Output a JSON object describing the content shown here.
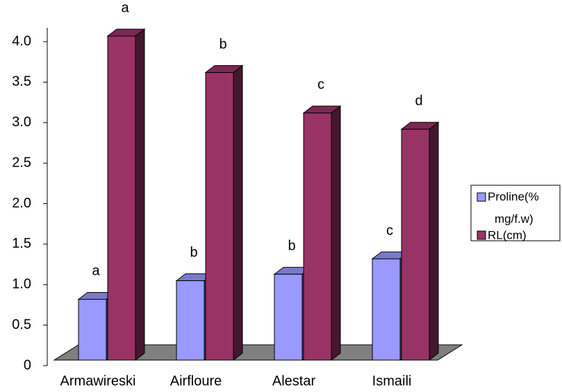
{
  "chart_data": {
    "type": "bar3d",
    "categories": [
      "Armawireski",
      "Airfloure",
      "Alestar",
      "Ismaili"
    ],
    "series": [
      {
        "name": "Proline(% mg/f.w)",
        "color": "#9999ff",
        "values": [
          0.75,
          0.98,
          1.06,
          1.25
        ],
        "labels": [
          "a",
          "b",
          "b",
          "c"
        ]
      },
      {
        "name": "RL(cm)",
        "color": "#993366",
        "values": [
          4.0,
          3.55,
          3.05,
          2.85
        ],
        "labels": [
          "a",
          "b",
          "c",
          "d"
        ]
      }
    ],
    "ylim": [
      0,
      4.2
    ],
    "yticks": [
      0,
      0.5,
      {
        "value": 1,
        "label": "1.0"
      },
      1.5,
      {
        "value": 2,
        "label": "2.0"
      },
      2.5,
      {
        "value": 3,
        "label": "3.0"
      },
      3.5,
      {
        "value": 4,
        "label": "4.0"
      }
    ],
    "legend": "right"
  }
}
